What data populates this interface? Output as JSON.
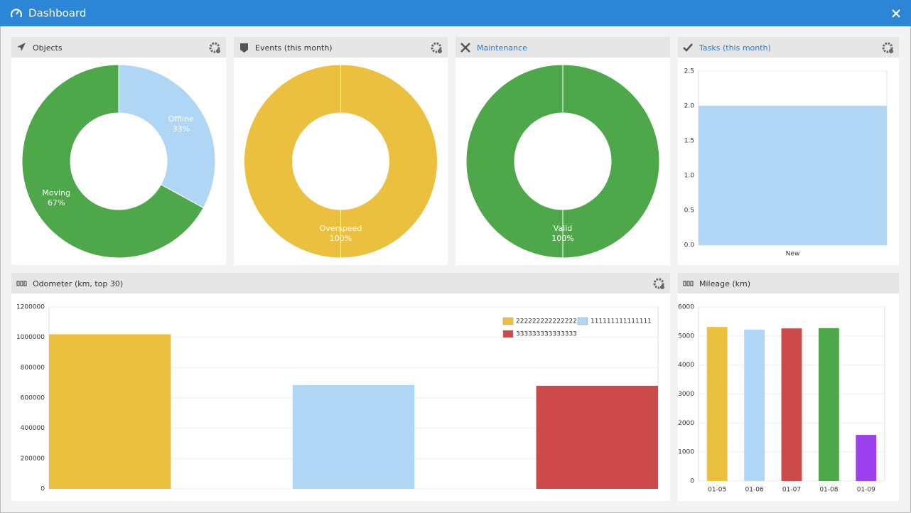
{
  "title": "Dashboard",
  "chart_data": [
    {
      "type": "pie",
      "title": "Objects",
      "categories": [
        "Offline",
        "Moving"
      ],
      "values": [
        33,
        67
      ],
      "value_labels": [
        "33%",
        "67%"
      ],
      "colors": [
        "#b0d6f5",
        "#4ea84a"
      ]
    },
    {
      "type": "pie",
      "title": "Events (this month)",
      "categories": [
        "Overspeed"
      ],
      "values": [
        100
      ],
      "value_labels": [
        "100%"
      ],
      "colors": [
        "#ebc03f"
      ]
    },
    {
      "type": "pie",
      "title": "Maintenance",
      "categories": [
        "Valid"
      ],
      "values": [
        100
      ],
      "value_labels": [
        "100%"
      ],
      "colors": [
        "#4ea84a"
      ]
    },
    {
      "type": "bar",
      "title": "Tasks (this month)",
      "categories": [
        "New"
      ],
      "values": [
        2
      ],
      "color": "#b0d6f5",
      "ylim": [
        0,
        2.5
      ],
      "yticks": [
        {
          "value": 0,
          "label": "0.0"
        },
        0.5,
        {
          "value": 1,
          "label": "1.0"
        },
        1.5,
        {
          "value": 2,
          "label": "2.0"
        },
        2.5
      ],
      "grid": true
    },
    {
      "type": "bar",
      "title": "Odometer (km, top 30)",
      "categories": [
        null
      ],
      "series": [
        {
          "name": "222222222222222",
          "color": "#ebc03f",
          "values": [
            1020000
          ]
        },
        {
          "name": "111111111111111",
          "color": "#b0d6f5",
          "values": [
            685000
          ]
        },
        {
          "name": "333333333333333",
          "color": "#cc4a4a",
          "values": [
            680000
          ]
        }
      ],
      "ylim": [
        0,
        1200000
      ],
      "yticks": [
        0,
        200000,
        400000,
        600000,
        800000,
        1000000,
        1200000
      ],
      "grid": true,
      "legend": "top-right"
    },
    {
      "type": "bar",
      "title": "Mileage (km)",
      "categories": [
        "01-05",
        "01-06",
        "01-07",
        "01-08",
        "01-09"
      ],
      "values": [
        5310,
        5220,
        5260,
        5270,
        1590
      ],
      "colors": [
        "#ebc03f",
        "#b0d6f5",
        "#cc4a4a",
        "#4ea84a",
        "#9b42ee"
      ],
      "ylim": [
        0,
        6000
      ],
      "yticks": [
        0,
        1000,
        2000,
        3000,
        4000,
        5000,
        6000
      ],
      "grid": true
    }
  ]
}
